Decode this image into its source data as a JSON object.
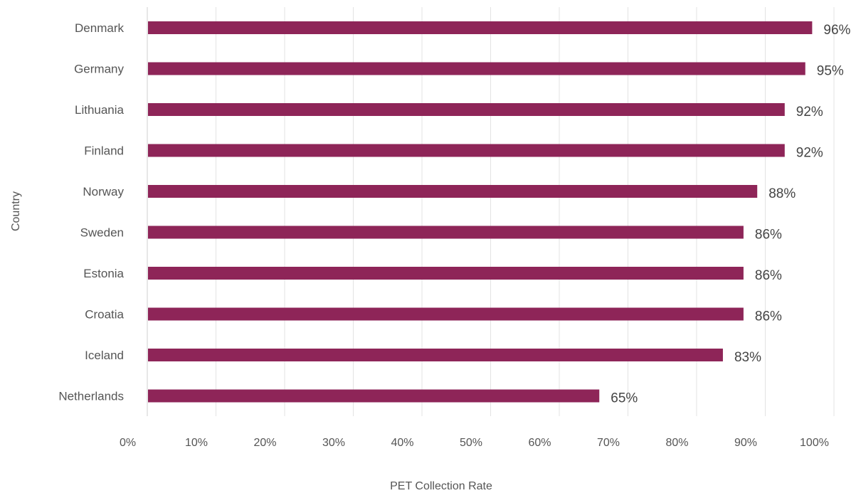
{
  "chart_data": {
    "type": "bar",
    "orientation": "horizontal",
    "categories": [
      "Denmark",
      "Germany",
      "Lithuania",
      "Finland",
      "Norway",
      "Sweden",
      "Estonia",
      "Croatia",
      "Iceland",
      "Netherlands"
    ],
    "values": [
      96,
      95,
      92,
      92,
      88,
      86,
      86,
      86,
      83,
      65
    ],
    "value_labels": [
      "96%",
      "95%",
      "92%",
      "92%",
      "88%",
      "86%",
      "86%",
      "86%",
      "83%",
      "65%"
    ],
    "xlabel": "PET Collection Rate",
    "ylabel": "Country",
    "xlim": [
      0,
      100
    ],
    "xticks": [
      0,
      10,
      20,
      30,
      40,
      50,
      60,
      70,
      80,
      90,
      100
    ],
    "xtick_labels": [
      "0%",
      "10%",
      "20%",
      "30%",
      "40%",
      "50%",
      "60%",
      "70%",
      "80%",
      "90%",
      "100%"
    ],
    "grid": true,
    "bar_color": "#8e2558"
  }
}
